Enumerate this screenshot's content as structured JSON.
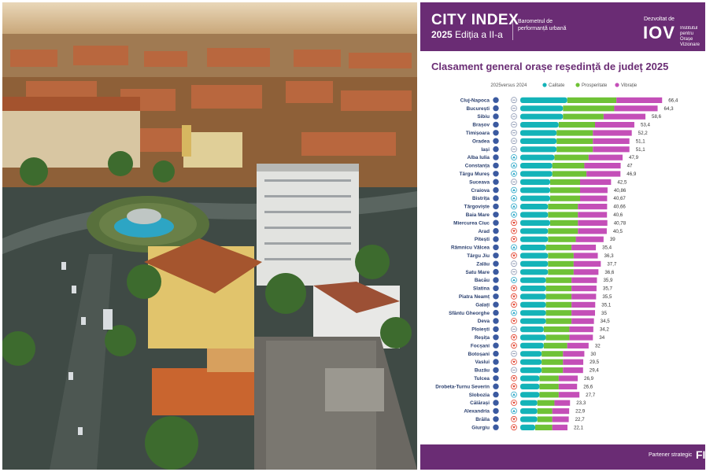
{
  "header": {
    "title": "CITY INDEX",
    "year": "2025",
    "edition": "Ediția a II-a",
    "tagline": "Barometrul de performanță urbană",
    "developed_by": "Dezvoltat de",
    "logo": "IOV",
    "logo_sub": "Institutul pentru Orașe Vizionare"
  },
  "footer": {
    "partner_label": "Partener strategic",
    "partner_logo": "FIC"
  },
  "colors": {
    "brand": "#6a2c74",
    "calitate": "#14b3b8",
    "prosperitate": "#6fc236",
    "vibratie": "#c44fb8",
    "rank_up": "#2aa7c7",
    "rank_down": "#e2432f"
  },
  "chart_data": {
    "type": "bar",
    "title": "Clasament general orașe reședință de județ 2025",
    "rank_columns": [
      "2025",
      "versus 2024"
    ],
    "legend_position": "top",
    "series_names": [
      "Calitate",
      "Prosperitate",
      "Vibrație"
    ],
    "xlim": [
      0,
      70
    ],
    "categories": [
      "Cluj-Napoca",
      "București",
      "Sibiu",
      "Brașov",
      "Timișoara",
      "Oradea",
      "Iași",
      "Alba Iulia",
      "Constanța",
      "Târgu Mureș",
      "Suceava",
      "Craiova",
      "Bistrița",
      "Târgoviște",
      "Baia Mare",
      "Miercurea Ciuc",
      "Arad",
      "Pitești",
      "Râmnicu Vâlcea",
      "Târgu Jiu",
      "Zalău",
      "Satu Mare",
      "Bacău",
      "Slatina",
      "Piatra Neamț",
      "Galați",
      "Sfântu Gheorghe",
      "Deva",
      "Ploiești",
      "Reșița",
      "Focșani",
      "Botoșani",
      "Vaslui",
      "Buzău",
      "Tulcea",
      "Drobeta-Turnu Severin",
      "Slobozia",
      "Călărași",
      "Alexandria",
      "Brăila",
      "Giurgiu"
    ],
    "totals": [
      66.4,
      64.3,
      58.6,
      53.4,
      52.2,
      51.1,
      51.1,
      47.9,
      47,
      46.9,
      42.5,
      40.86,
      40.67,
      40.66,
      40.6,
      40.78,
      40.5,
      39,
      35.4,
      36.3,
      37.7,
      36.6,
      35.9,
      35.7,
      35.5,
      35.1,
      35,
      34.5,
      34.2,
      34,
      32,
      30,
      29.5,
      29.4,
      26.9,
      26.6,
      27.7,
      23.3,
      22.9,
      22.7,
      22.1
    ],
    "total_labels": [
      "66,4",
      "64,3",
      "58,6",
      "53,4",
      "52,2",
      "51,1",
      "51,1",
      "47,9",
      "47",
      "46,9",
      "42,5",
      "40,86",
      "40,67",
      "40,66",
      "40,6",
      "40,78",
      "40,5",
      "39",
      "35,4",
      "36,3",
      "37,7",
      "36,6",
      "35,9",
      "35,7",
      "35,5",
      "35,1",
      "35",
      "34,5",
      "34,2",
      "34",
      "32",
      "30",
      "29,5",
      "29,4",
      "26,9",
      "26,6",
      "27,7",
      "23,3",
      "22,9",
      "22,7",
      "22,1"
    ],
    "trend": [
      "same",
      "same",
      "same",
      "same",
      "same",
      "same",
      "same",
      "up",
      "up",
      "up",
      "same",
      "up",
      "up",
      "up",
      "up",
      "down",
      "down",
      "down",
      "up",
      "down",
      "same",
      "same",
      "up",
      "down",
      "down",
      "down",
      "up",
      "down",
      "same",
      "down",
      "down",
      "same",
      "down",
      "same",
      "down",
      "down",
      "up",
      "down",
      "up",
      "down",
      "down"
    ],
    "series": [
      {
        "name": "Calitate",
        "values": [
          22,
          20,
          20,
          18,
          17,
          17,
          17,
          16,
          15,
          15,
          14,
          14,
          14,
          13,
          13,
          14,
          13,
          13,
          12,
          13,
          13,
          13,
          12,
          12,
          12,
          12,
          12,
          12,
          11,
          12,
          11,
          10,
          10,
          10,
          9,
          9,
          9,
          8,
          8,
          8,
          7
        ]
      },
      {
        "name": "Prosperitate",
        "values": [
          23,
          24,
          19,
          17,
          17,
          17,
          17,
          16,
          15,
          16,
          14,
          14,
          14,
          14,
          14,
          13,
          14,
          13,
          12,
          12,
          12,
          12,
          12,
          12,
          12,
          12,
          12,
          12,
          12,
          11,
          11,
          10,
          10,
          10,
          9,
          9,
          9,
          8,
          7,
          7,
          8
        ]
      },
      {
        "name": "Vibrație",
        "values": [
          21.4,
          20.3,
          19.6,
          18.4,
          18.2,
          17.1,
          17.1,
          15.9,
          17,
          15.9,
          14.5,
          12.86,
          12.67,
          13.66,
          13.6,
          13.78,
          13.5,
          13,
          11.4,
          11.3,
          12.7,
          11.6,
          11.9,
          11.7,
          11.5,
          11.1,
          11,
          10.5,
          11.2,
          11,
          10,
          10,
          9.5,
          9.4,
          8.9,
          8.6,
          9.7,
          7.3,
          7.9,
          7.7,
          7.1
        ]
      }
    ]
  }
}
